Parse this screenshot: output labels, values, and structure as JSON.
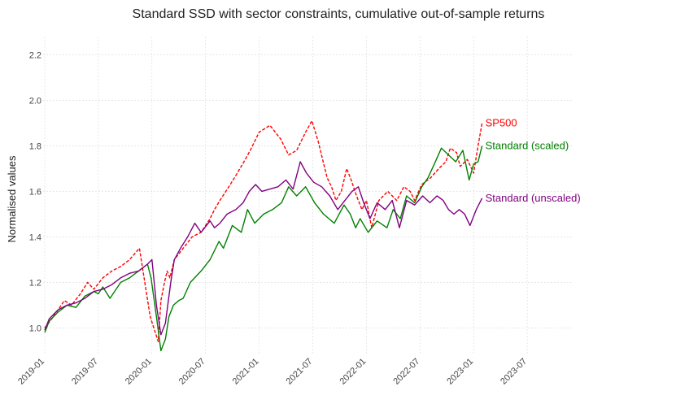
{
  "chart_data": {
    "type": "line",
    "title": "Standard SSD with sector constraints, cumulative out-of-sample returns",
    "xlabel": "",
    "ylabel": "Normalised values",
    "ylim": [
      0.88,
      2.28
    ],
    "y_ticks": [
      1.0,
      1.2,
      1.4,
      1.6,
      1.8,
      2.0,
      2.2
    ],
    "y_tick_labels": [
      "1.0",
      "1.2",
      "1.4",
      "1.6",
      "1.8",
      "2.0",
      "2.2"
    ],
    "x_range": [
      "2019-01",
      "2023-12"
    ],
    "x_tick_labels": [
      "2019-01",
      "2019-07",
      "2020-01",
      "2020-07",
      "2021-01",
      "2021-07",
      "2022-01",
      "2022-07",
      "2023-01",
      "2023-07"
    ],
    "grid": true,
    "series": [
      {
        "name": "SP500",
        "color": "#ff0000",
        "dash": "dashed",
        "x": [
          0.0,
          0.6,
          1.5,
          2.2,
          3.0,
          4.0,
          4.8,
          5.5,
          6.5,
          7.5,
          8.5,
          9.5,
          10.6,
          11.8,
          12.7,
          13.0,
          13.4,
          13.7,
          14.0,
          14.5,
          15.5,
          16.5,
          17.5,
          18.5,
          19.0,
          19.6,
          20.6,
          21.4,
          22.3,
          23.0,
          24.0,
          25.2,
          26.4,
          27.3,
          28.2,
          29.2,
          29.9,
          30.6,
          31.1,
          31.6,
          32.1,
          32.6,
          33.2,
          33.8,
          34.3,
          34.9,
          35.5,
          36.0,
          36.6,
          37.4,
          38.4,
          39.4,
          40.2,
          40.9,
          41.4,
          42.2,
          43.2,
          44.1,
          44.9,
          45.4,
          46.1,
          46.5,
          47.3,
          48.0,
          48.5,
          48.95
        ],
        "values": [
          1.0,
          1.03,
          1.08,
          1.12,
          1.1,
          1.15,
          1.2,
          1.17,
          1.22,
          1.25,
          1.27,
          1.3,
          1.35,
          1.05,
          0.94,
          1.12,
          1.2,
          1.25,
          1.22,
          1.3,
          1.35,
          1.4,
          1.42,
          1.48,
          1.52,
          1.56,
          1.62,
          1.67,
          1.73,
          1.78,
          1.86,
          1.89,
          1.83,
          1.76,
          1.78,
          1.86,
          1.91,
          1.82,
          1.74,
          1.66,
          1.62,
          1.56,
          1.6,
          1.7,
          1.65,
          1.58,
          1.52,
          1.56,
          1.44,
          1.56,
          1.6,
          1.56,
          1.62,
          1.6,
          1.56,
          1.63,
          1.66,
          1.7,
          1.73,
          1.79,
          1.77,
          1.71,
          1.74,
          1.68,
          1.8,
          1.9
        ]
      },
      {
        "name": "Standard (scaled)",
        "color": "#008000",
        "dash": "solid",
        "x": [
          0.0,
          0.5,
          1.5,
          2.5,
          3.5,
          4.5,
          5.5,
          6.0,
          6.5,
          7.3,
          8.5,
          9.5,
          10.5,
          11.5,
          11.9,
          12.5,
          13.0,
          13.5,
          13.9,
          14.4,
          15.0,
          15.5,
          16.3,
          17.5,
          18.5,
          19.5,
          20.0,
          21.0,
          22.0,
          22.7,
          23.5,
          24.5,
          25.5,
          26.5,
          27.3,
          28.2,
          29.2,
          30.2,
          31.2,
          32.4,
          33.5,
          34.2,
          34.8,
          35.3,
          36.2,
          37.2,
          38.3,
          39.0,
          39.8,
          40.5,
          41.4,
          42.2,
          42.9,
          43.6,
          44.4,
          45.2,
          46.0,
          46.8,
          47.5,
          48.0,
          48.5,
          48.95
        ],
        "values": [
          0.98,
          1.03,
          1.07,
          1.1,
          1.09,
          1.14,
          1.16,
          1.15,
          1.18,
          1.13,
          1.2,
          1.22,
          1.25,
          1.28,
          1.22,
          1.05,
          0.9,
          0.95,
          1.05,
          1.1,
          1.12,
          1.13,
          1.2,
          1.25,
          1.3,
          1.38,
          1.35,
          1.45,
          1.42,
          1.52,
          1.46,
          1.5,
          1.52,
          1.55,
          1.62,
          1.58,
          1.62,
          1.55,
          1.5,
          1.46,
          1.54,
          1.5,
          1.44,
          1.48,
          1.42,
          1.47,
          1.44,
          1.52,
          1.48,
          1.58,
          1.55,
          1.62,
          1.66,
          1.72,
          1.79,
          1.76,
          1.73,
          1.78,
          1.65,
          1.72,
          1.73,
          1.8
        ]
      },
      {
        "name": "Standard (unscaled)",
        "color": "#800080",
        "dash": "solid",
        "x": [
          0.0,
          0.5,
          1.5,
          2.5,
          3.5,
          4.5,
          5.5,
          6.5,
          7.5,
          8.5,
          9.5,
          10.5,
          11.5,
          12.0,
          12.5,
          13.0,
          13.5,
          14.1,
          14.5,
          15.2,
          16.0,
          16.8,
          17.5,
          18.5,
          19.0,
          19.6,
          20.4,
          21.4,
          22.2,
          22.9,
          23.6,
          24.3,
          25.2,
          26.1,
          27.0,
          27.8,
          28.6,
          29.3,
          30.1,
          31.0,
          31.9,
          32.8,
          33.6,
          34.4,
          35.1,
          35.7,
          36.4,
          37.2,
          38.1,
          38.9,
          39.7,
          40.5,
          41.4,
          42.3,
          43.1,
          43.9,
          44.6,
          45.2,
          45.8,
          46.4,
          47.0,
          47.6,
          48.3,
          48.95
        ],
        "values": [
          0.99,
          1.04,
          1.08,
          1.1,
          1.11,
          1.13,
          1.16,
          1.17,
          1.19,
          1.22,
          1.24,
          1.25,
          1.28,
          1.3,
          1.1,
          0.97,
          1.02,
          1.2,
          1.3,
          1.35,
          1.4,
          1.46,
          1.42,
          1.47,
          1.44,
          1.46,
          1.5,
          1.52,
          1.55,
          1.6,
          1.63,
          1.6,
          1.61,
          1.62,
          1.65,
          1.61,
          1.73,
          1.68,
          1.64,
          1.62,
          1.58,
          1.52,
          1.56,
          1.6,
          1.62,
          1.55,
          1.48,
          1.55,
          1.52,
          1.56,
          1.44,
          1.56,
          1.54,
          1.58,
          1.55,
          1.58,
          1.56,
          1.52,
          1.5,
          1.52,
          1.5,
          1.45,
          1.52,
          1.57
        ]
      }
    ]
  }
}
